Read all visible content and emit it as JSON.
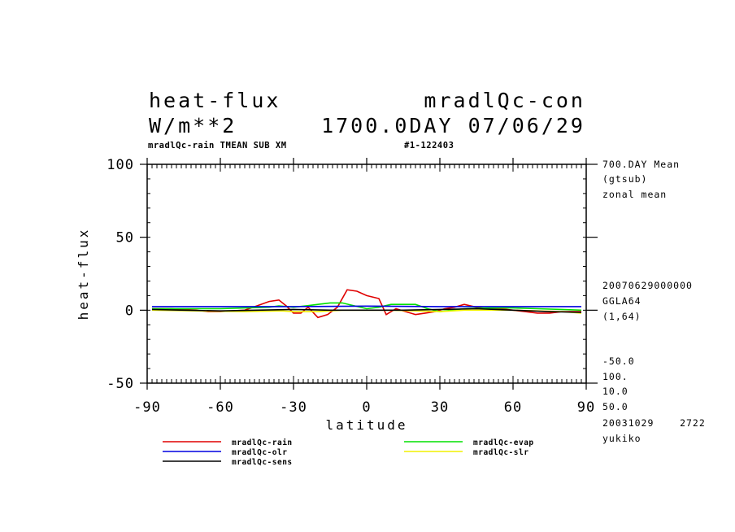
{
  "header": {
    "variable": "heat-flux",
    "units": "W/m**2",
    "experiment": "mradlQc-con",
    "time_info": "1700.0DAY 07/06/29",
    "subtitle_left": "mradlQc-rain TMEAN SUB XM",
    "subtitle_right": "#1-122403"
  },
  "side_info": {
    "l1": "700.DAY Mean",
    "l2": "(gtsub)",
    "l3": "zonal mean",
    "l4": "20070629000000",
    "l5": "GGLA64",
    "l6": "(1,64)",
    "l7": "-50.0",
    "l8": "100.",
    "l9": "10.0",
    "l10": "50.0",
    "l11": "20031029    2722",
    "l12": "yukiko"
  },
  "chart_data": {
    "type": "line",
    "xlabel": "latitude",
    "ylabel": "heat-flux",
    "xlim": [
      -90,
      90
    ],
    "ylim": [
      -50,
      100
    ],
    "xticks": [
      "-90",
      "-60",
      "-30",
      "0",
      "30",
      "60",
      "90"
    ],
    "yticks": [
      "100",
      "50",
      "0",
      "-50"
    ],
    "grid": false,
    "legend_position": "bottom",
    "series": [
      {
        "name": "mradlQc-rain",
        "color": "#e00000",
        "x": [
          -88,
          -80,
          -75,
          -70,
          -65,
          -60,
          -55,
          -50,
          -45,
          -40,
          -36,
          -33,
          -30,
          -27,
          -24,
          -20,
          -16,
          -12,
          -8,
          -4,
          0,
          5,
          8,
          12,
          16,
          20,
          24,
          28,
          32,
          36,
          40,
          45,
          50,
          55,
          60,
          65,
          70,
          75,
          80,
          85,
          88
        ],
        "y": [
          1,
          1,
          0.5,
          0,
          -1,
          -1,
          -0.5,
          0,
          3,
          6,
          7,
          3,
          -2,
          -2,
          2,
          -5,
          -3,
          2,
          14,
          13,
          10,
          8,
          -3,
          1,
          -1,
          -3,
          -2,
          -1,
          1,
          2,
          4,
          2,
          1,
          1,
          0,
          -1,
          -2,
          -2,
          -1,
          -1,
          -1
        ]
      },
      {
        "name": "mradlQc-evap",
        "color": "#00e000",
        "x": [
          -88,
          -75,
          -60,
          -50,
          -40,
          -36,
          -30,
          -25,
          -20,
          -15,
          -10,
          -5,
          0,
          5,
          10,
          15,
          20,
          25,
          30,
          35,
          40,
          50,
          60,
          70,
          80,
          88
        ],
        "y": [
          1,
          1,
          1,
          1.5,
          2,
          3,
          2,
          3,
          4,
          5,
          5,
          3,
          1,
          2,
          4,
          4,
          4,
          1,
          -1,
          0,
          1,
          1.5,
          1.5,
          1,
          0.5,
          0
        ]
      },
      {
        "name": "mradlQc-olr",
        "color": "#0000e0",
        "x": [
          -88,
          -60,
          -30,
          0,
          30,
          60,
          88
        ],
        "y": [
          2.5,
          2.5,
          2.5,
          2.8,
          2.5,
          2.5,
          2.5
        ]
      },
      {
        "name": "mradlQc-slr",
        "color": "#f0f000",
        "x": [
          -88,
          -70,
          -50,
          -35,
          -30,
          -20,
          -10,
          0,
          10,
          20,
          30,
          40,
          50,
          60,
          70,
          80,
          88
        ],
        "y": [
          0,
          -0.5,
          -1,
          -0.5,
          -1,
          -1,
          0,
          0,
          0,
          -0.5,
          -1,
          0,
          0,
          0,
          -0.5,
          -1,
          -2
        ]
      },
      {
        "name": "mradlQc-sens",
        "color": "#000000",
        "x": [
          -88,
          -75,
          -60,
          -45,
          -30,
          -15,
          0,
          15,
          30,
          45,
          60,
          75,
          88
        ],
        "y": [
          0.5,
          0,
          -0.5,
          0,
          0.5,
          0,
          0,
          0,
          0.5,
          1,
          0,
          -1,
          -1.5
        ]
      }
    ]
  }
}
